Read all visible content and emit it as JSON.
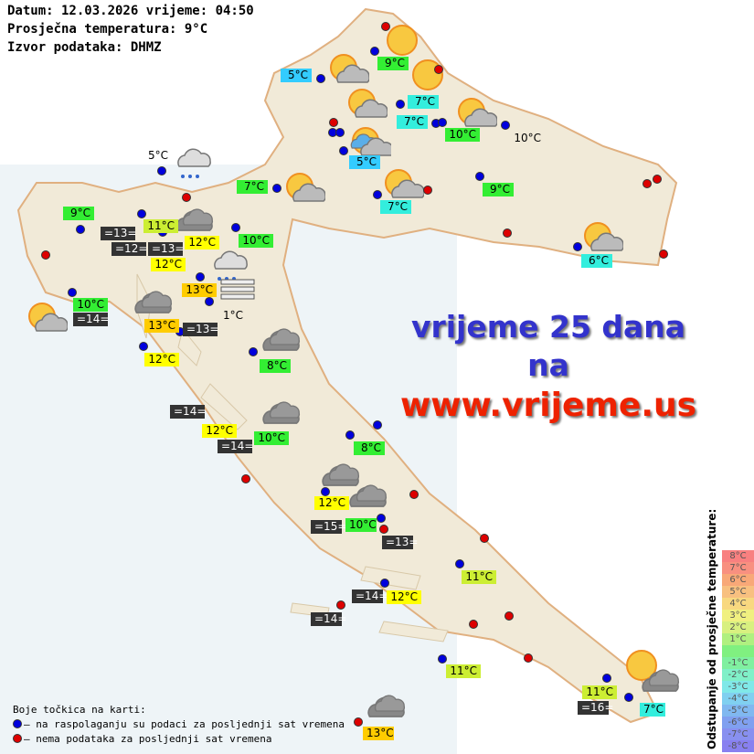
{
  "header": {
    "date_line": "Datum: 12.03.2026 vrijeme: 04:50",
    "avg_temp_line": "Prosječna temperatura: 9°C",
    "source_line": "Izvor podataka: DHMZ"
  },
  "colors": {
    "green": "#33ee33",
    "yellowgreen": "#ccee33",
    "yellow": "#ffff00",
    "orange": "#ffcc00",
    "cyan": "#33eedd",
    "blue": "#33ccff",
    "dark": "#333333",
    "dot_available": "#0000dd",
    "dot_unavailable": "#dd0000",
    "land": "#f1ead8",
    "sea": "#eef4f7"
  },
  "labels": [
    {
      "text": "5°C",
      "bg": "blue"
    },
    {
      "text": "9°C",
      "bg": "green"
    },
    {
      "text": "7°C",
      "bg": "cyan"
    },
    {
      "text": "7°C",
      "bg": "cyan"
    },
    {
      "text": "10°C",
      "bg": "green"
    },
    {
      "text": "10°C",
      "bg": "plain"
    },
    {
      "text": "5°C",
      "bg": "blue"
    },
    {
      "text": "7°C",
      "bg": "green"
    },
    {
      "text": "7°C",
      "bg": "cyan"
    },
    {
      "text": "9°C",
      "bg": "green"
    },
    {
      "text": "9°C",
      "bg": "green"
    },
    {
      "text": "11°C",
      "bg": "yellowgreen"
    },
    {
      "text": "12°C",
      "bg": "yellow"
    },
    {
      "text": "12°C",
      "bg": "yellow"
    },
    {
      "text": "=13=",
      "bg": "dark"
    },
    {
      "text": "=12=",
      "bg": "dark"
    },
    {
      "text": "=13=",
      "bg": "dark"
    },
    {
      "text": "10°C",
      "bg": "green"
    },
    {
      "text": "13°C",
      "bg": "orange"
    },
    {
      "text": "1°C",
      "bg": "plain"
    },
    {
      "text": "10°C",
      "bg": "green"
    },
    {
      "text": "=14=",
      "bg": "dark"
    },
    {
      "text": "13°C",
      "bg": "orange"
    },
    {
      "text": "=13=",
      "bg": "dark"
    },
    {
      "text": "5°C",
      "bg": "plain"
    },
    {
      "text": "12°C",
      "bg": "yellow"
    },
    {
      "text": "8°C",
      "bg": "green"
    },
    {
      "text": "=14=",
      "bg": "dark"
    },
    {
      "text": "12°C",
      "bg": "yellow"
    },
    {
      "text": "10°C",
      "bg": "green"
    },
    {
      "text": "=14=",
      "bg": "dark"
    },
    {
      "text": "8°C",
      "bg": "green"
    },
    {
      "text": "12°C",
      "bg": "yellow"
    },
    {
      "text": "=15=",
      "bg": "dark"
    },
    {
      "text": "10°C",
      "bg": "green"
    },
    {
      "text": "=13=",
      "bg": "dark"
    },
    {
      "text": "11°C",
      "bg": "yellowgreen"
    },
    {
      "text": "=14=",
      "bg": "dark"
    },
    {
      "text": "12°C",
      "bg": "yellow"
    },
    {
      "text": "=14=",
      "bg": "dark"
    },
    {
      "text": "11°C",
      "bg": "yellowgreen"
    },
    {
      "text": "11°C",
      "bg": "yellowgreen"
    },
    {
      "text": "=16=",
      "bg": "dark"
    },
    {
      "text": "7°C",
      "bg": "cyan"
    },
    {
      "text": "13°C",
      "bg": "orange"
    },
    {
      "text": "6°C",
      "bg": "cyan"
    }
  ],
  "stations": [
    "unavailable",
    "available",
    "available",
    "available",
    "available",
    "available",
    "unavailable",
    "unavailable",
    "available",
    "available",
    "available",
    "available",
    "unavailable",
    "unavailable",
    "available",
    "unavailable",
    "available",
    "available",
    "available",
    "available",
    "unavailable",
    "available",
    "unavailable",
    "unavailable",
    "unavailable",
    "available",
    "available",
    "available",
    "available",
    "available",
    "available",
    "available",
    "available",
    "available",
    "unavailable",
    "available",
    "unavailable",
    "available",
    "unavailable",
    "available",
    "unavailable",
    "unavailable",
    "available",
    "unavailable",
    "unavailable",
    "available",
    "unavailable",
    "available",
    "available",
    "available",
    "available",
    "unavailable"
  ],
  "weather_icons": [
    "sun",
    "partly-cloudy",
    "sun",
    "partly-cloudy",
    "partly-cloudy",
    "partly-cloudy-rain",
    "partly-cloudy",
    "partly-cloudy",
    "rain",
    "partly-cloudy",
    "cloud",
    "partly-cloudy",
    "sun",
    "cloud",
    "rain",
    "fog",
    "cloud",
    "cloud",
    "cloud",
    "cloud",
    "cloud",
    "cloud",
    "sun",
    "sun",
    "partly-cloudy"
  ],
  "ad": {
    "line1": "vrijeme 25 dana",
    "line2": "na",
    "line3": "www.vrijeme.us"
  },
  "legend": {
    "title": "Boje točkica na karti:",
    "available": "– na raspolaganju su podaci za posljednji sat vremena",
    "unavailable": "– nema podataka za posljednji sat vremena"
  },
  "scale": {
    "title": "Odstupanje od prosječne temperature:",
    "steps": [
      {
        "label": "8°C",
        "color": "#f88080"
      },
      {
        "label": "7°C",
        "color": "#f89080"
      },
      {
        "label": "6°C",
        "color": "#f8a878"
      },
      {
        "label": "5°C",
        "color": "#f8c080"
      },
      {
        "label": "4°C",
        "color": "#f8d880"
      },
      {
        "label": "3°C",
        "color": "#f0f080"
      },
      {
        "label": "2°C",
        "color": "#d8f080"
      },
      {
        "label": "1°C",
        "color": "#b0f080"
      },
      {
        "label": "",
        "color": "#80f080"
      },
      {
        "label": "-1°C",
        "color": "#80f0a0"
      },
      {
        "label": "-2°C",
        "color": "#80f0c8"
      },
      {
        "label": "-3°C",
        "color": "#80e8e8"
      },
      {
        "label": "-4°C",
        "color": "#80d0f0"
      },
      {
        "label": "-5°C",
        "color": "#80b8f0"
      },
      {
        "label": "-6°C",
        "color": "#80a0f0"
      },
      {
        "label": "-7°C",
        "color": "#8890f0"
      },
      {
        "label": "-8°C",
        "color": "#8880f0"
      }
    ]
  }
}
